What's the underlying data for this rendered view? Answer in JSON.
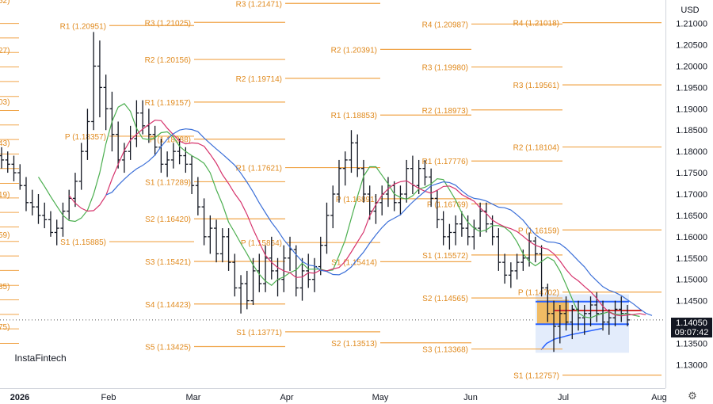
{
  "header": {
    "currency": "USD"
  },
  "last_price": {
    "value": "1.14050",
    "countdown": "09:07:42"
  },
  "watermark": {
    "text": "InstaFintech"
  },
  "settings_icon": "gear-icon",
  "colors": {
    "pivot": "#f0a54a",
    "pivot_text": "#e08a1e",
    "ma_fast": "#4caf50",
    "ma_mid": "#d6336c",
    "ma_slow": "#3b6fd8",
    "bars": "#131722",
    "volume_profile": "#2962ff",
    "level_line": "#d32f2f"
  },
  "chart_data": {
    "type": "ohlc",
    "ylim": [
      1.1245,
      1.2155
    ],
    "y_ticks": [
      "1.21000",
      "1.20500",
      "1.20000",
      "1.19500",
      "1.19000",
      "1.18500",
      "1.18000",
      "1.17500",
      "1.17000",
      "1.16500",
      "1.16000",
      "1.15500",
      "1.15000",
      "1.14500",
      "1.14000",
      "1.13500",
      "1.13000"
    ],
    "x_ticks": [
      "2026",
      "Feb",
      "Mar",
      "Apr",
      "May",
      "Jun",
      "Jul",
      "Aug"
    ],
    "left_edge_labels": [
      "52)",
      "27)",
      "03)",
      "43)",
      "19)",
      "59)",
      "35)",
      "75)"
    ],
    "pivot_levels": [
      {
        "label": "R1 (1.20951)",
        "value": 1.20951
      },
      {
        "label": "P (1.18357)",
        "value": 1.18357
      },
      {
        "label": "S1 (1.15885)",
        "value": 1.15885
      },
      {
        "label": "R3 (1.21025)",
        "value": 1.21025
      },
      {
        "label": "R2 (1.20156)",
        "value": 1.20156
      },
      {
        "label": "R1 (1.19157)",
        "value": 1.19157
      },
      {
        "label": "P (1.18288)",
        "value": 1.18288
      },
      {
        "label": "S1 (1.17289)",
        "value": 1.17289
      },
      {
        "label": "S2 (1.16420)",
        "value": 1.1642
      },
      {
        "label": "S3 (1.15421)",
        "value": 1.15421
      },
      {
        "label": "S4 (1.14423)",
        "value": 1.14423
      },
      {
        "label": "S5 (1.13425)",
        "value": 1.13425
      },
      {
        "label": "R3 (1.21471)",
        "value": 1.21471
      },
      {
        "label": "R2 (1.19714)",
        "value": 1.19714
      },
      {
        "label": "R1 (1.17621)",
        "value": 1.17621
      },
      {
        "label": "P (1.15864)",
        "value": 1.15864
      },
      {
        "label": "S1 (1.13771)",
        "value": 1.13771
      },
      {
        "label": "R2 (1.20391)",
        "value": 1.20391
      },
      {
        "label": "R1 (1.18853)",
        "value": 1.18853
      },
      {
        "label": "P (1.16891)",
        "value": 1.16891
      },
      {
        "label": "S1 (1.15414)",
        "value": 1.15414
      },
      {
        "label": "S2 (1.13513)",
        "value": 1.13513
      },
      {
        "label": "R4 (1.20987)",
        "value": 1.20987
      },
      {
        "label": "R3 (1.19980)",
        "value": 1.1998
      },
      {
        "label": "R2 (1.18973)",
        "value": 1.18973
      },
      {
        "label": "R1 (1.17776)",
        "value": 1.17776
      },
      {
        "label": "P (1.16769)",
        "value": 1.16769
      },
      {
        "label": "S1 (1.15572)",
        "value": 1.15572
      },
      {
        "label": "S2 (1.14565)",
        "value": 1.14565
      },
      {
        "label": "S3 (1.13368)",
        "value": 1.13368
      },
      {
        "label": "R4 (1.21018)",
        "value": 1.21018
      },
      {
        "label": "R3 (1.19561)",
        "value": 1.19561
      },
      {
        "label": "R2 (1.18104)",
        "value": 1.18104
      },
      {
        "label": "P (1.16159)",
        "value": 1.16159
      },
      {
        "label": "P (1.14702)",
        "value": 1.14702
      },
      {
        "label": "S1 (1.12757)",
        "value": 1.12757
      }
    ],
    "left_edge_levels": [
      1.21,
      1.2066,
      1.2032,
      1.1998,
      1.1964,
      1.1929,
      1.1896,
      1.1862,
      1.1828,
      1.1794,
      1.176,
      1.1725,
      1.1691,
      1.1657,
      1.1623,
      1.1589,
      1.1555,
      1.1521,
      1.1486,
      1.1452,
      1.1418,
      1.1384,
      1.135
    ],
    "ohlc_bars": [
      [
        1.179,
        1.181,
        1.176,
        1.178
      ],
      [
        1.178,
        1.18,
        1.175,
        1.177
      ],
      [
        1.177,
        1.179,
        1.173,
        1.175
      ],
      [
        1.175,
        1.177,
        1.171,
        1.172
      ],
      [
        1.172,
        1.174,
        1.166,
        1.168
      ],
      [
        1.168,
        1.171,
        1.165,
        1.167
      ],
      [
        1.167,
        1.17,
        1.163,
        1.165
      ],
      [
        1.165,
        1.168,
        1.162,
        1.164
      ],
      [
        1.164,
        1.166,
        1.16,
        1.161
      ],
      [
        1.161,
        1.164,
        1.158,
        1.162
      ],
      [
        1.162,
        1.168,
        1.16,
        1.166
      ],
      [
        1.166,
        1.171,
        1.164,
        1.169
      ],
      [
        1.169,
        1.175,
        1.167,
        1.173
      ],
      [
        1.173,
        1.182,
        1.171,
        1.18
      ],
      [
        1.18,
        1.19,
        1.178,
        1.187
      ],
      [
        1.187,
        1.208,
        1.185,
        1.2
      ],
      [
        1.2,
        1.206,
        1.188,
        1.195
      ],
      [
        1.195,
        1.198,
        1.185,
        1.19
      ],
      [
        1.19,
        1.194,
        1.18,
        1.184
      ],
      [
        1.184,
        1.187,
        1.176,
        1.178
      ],
      [
        1.178,
        1.182,
        1.175,
        1.18
      ],
      [
        1.18,
        1.186,
        1.178,
        1.183
      ],
      [
        1.183,
        1.192,
        1.181,
        1.189
      ],
      [
        1.189,
        1.192,
        1.184,
        1.186
      ],
      [
        1.186,
        1.19,
        1.182,
        1.184
      ],
      [
        1.184,
        1.186,
        1.179,
        1.181
      ],
      [
        1.181,
        1.183,
        1.175,
        1.177
      ],
      [
        1.177,
        1.18,
        1.174,
        1.178
      ],
      [
        1.178,
        1.182,
        1.176,
        1.18
      ],
      [
        1.18,
        1.183,
        1.177,
        1.179
      ],
      [
        1.179,
        1.181,
        1.175,
        1.177
      ],
      [
        1.177,
        1.179,
        1.17,
        1.172
      ],
      [
        1.172,
        1.174,
        1.165,
        1.167
      ],
      [
        1.167,
        1.169,
        1.158,
        1.16
      ],
      [
        1.16,
        1.165,
        1.156,
        1.162
      ],
      [
        1.162,
        1.164,
        1.154,
        1.156
      ],
      [
        1.156,
        1.162,
        1.154,
        1.16
      ],
      [
        1.16,
        1.162,
        1.152,
        1.154
      ],
      [
        1.154,
        1.156,
        1.146,
        1.148
      ],
      [
        1.148,
        1.151,
        1.142,
        1.149
      ],
      [
        1.149,
        1.152,
        1.143,
        1.145
      ],
      [
        1.145,
        1.155,
        1.144,
        1.152
      ],
      [
        1.152,
        1.156,
        1.147,
        1.149
      ],
      [
        1.149,
        1.158,
        1.147,
        1.155
      ],
      [
        1.155,
        1.16,
        1.15,
        1.152
      ],
      [
        1.152,
        1.155,
        1.146,
        1.15
      ],
      [
        1.15,
        1.158,
        1.147,
        1.155
      ],
      [
        1.155,
        1.16,
        1.152,
        1.157
      ],
      [
        1.157,
        1.158,
        1.146,
        1.148
      ],
      [
        1.148,
        1.155,
        1.145,
        1.152
      ],
      [
        1.152,
        1.156,
        1.148,
        1.15
      ],
      [
        1.15,
        1.155,
        1.147,
        1.153
      ],
      [
        1.153,
        1.16,
        1.151,
        1.158
      ],
      [
        1.158,
        1.168,
        1.156,
        1.165
      ],
      [
        1.165,
        1.172,
        1.162,
        1.17
      ],
      [
        1.17,
        1.178,
        1.168,
        1.176
      ],
      [
        1.176,
        1.18,
        1.172,
        1.178
      ],
      [
        1.178,
        1.185,
        1.175,
        1.182
      ],
      [
        1.182,
        1.184,
        1.174,
        1.176
      ],
      [
        1.176,
        1.178,
        1.168,
        1.17
      ],
      [
        1.17,
        1.172,
        1.164,
        1.166
      ],
      [
        1.166,
        1.17,
        1.163,
        1.168
      ],
      [
        1.168,
        1.172,
        1.165,
        1.17
      ],
      [
        1.17,
        1.174,
        1.167,
        1.172
      ],
      [
        1.172,
        1.173,
        1.166,
        1.168
      ],
      [
        1.168,
        1.172,
        1.165,
        1.17
      ],
      [
        1.17,
        1.178,
        1.168,
        1.176
      ],
      [
        1.176,
        1.179,
        1.17,
        1.172
      ],
      [
        1.172,
        1.178,
        1.17,
        1.176
      ],
      [
        1.176,
        1.178,
        1.172,
        1.174
      ],
      [
        1.174,
        1.176,
        1.167,
        1.169
      ],
      [
        1.169,
        1.171,
        1.162,
        1.164
      ],
      [
        1.164,
        1.166,
        1.158,
        1.16
      ],
      [
        1.16,
        1.163,
        1.157,
        1.161
      ],
      [
        1.161,
        1.165,
        1.158,
        1.163
      ],
      [
        1.163,
        1.166,
        1.16,
        1.162
      ],
      [
        1.162,
        1.165,
        1.158,
        1.16
      ],
      [
        1.16,
        1.164,
        1.157,
        1.162
      ],
      [
        1.162,
        1.168,
        1.16,
        1.166
      ],
      [
        1.166,
        1.168,
        1.161,
        1.163
      ],
      [
        1.163,
        1.165,
        1.158,
        1.16
      ],
      [
        1.16,
        1.162,
        1.152,
        1.154
      ],
      [
        1.154,
        1.156,
        1.149,
        1.151
      ],
      [
        1.151,
        1.154,
        1.148,
        1.152
      ],
      [
        1.152,
        1.156,
        1.15,
        1.154
      ],
      [
        1.154,
        1.157,
        1.152,
        1.155
      ],
      [
        1.155,
        1.161,
        1.153,
        1.159
      ],
      [
        1.159,
        1.16,
        1.154,
        1.156
      ],
      [
        1.156,
        1.158,
        1.146,
        1.148
      ],
      [
        1.148,
        1.149,
        1.14,
        1.142
      ],
      [
        1.142,
        1.145,
        1.133,
        1.139
      ],
      [
        1.139,
        1.144,
        1.135,
        1.142
      ],
      [
        1.142,
        1.146,
        1.138,
        1.14
      ],
      [
        1.14,
        1.144,
        1.136,
        1.143
      ],
      [
        1.143,
        1.145,
        1.138,
        1.141
      ],
      [
        1.141,
        1.144,
        1.137,
        1.142
      ],
      [
        1.142,
        1.146,
        1.139,
        1.144
      ],
      [
        1.144,
        1.147,
        1.14,
        1.142
      ],
      [
        1.142,
        1.145,
        1.138,
        1.14
      ],
      [
        1.14,
        1.143,
        1.137,
        1.141
      ],
      [
        1.141,
        1.145,
        1.139,
        1.143
      ],
      [
        1.143,
        1.146,
        1.14,
        1.142
      ],
      [
        1.142,
        1.144,
        1.139,
        1.1405
      ]
    ]
  }
}
